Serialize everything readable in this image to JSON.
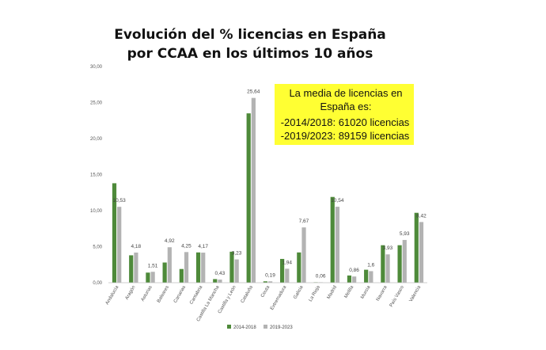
{
  "chart_data": {
    "type": "bar",
    "title_lines": [
      "Evolución del % licencias en España",
      "por CCAA en los últimos 10 años"
    ],
    "categories": [
      "Andalucía",
      "Aragón",
      "Asturias",
      "Baleares",
      "Canarias",
      "Cantabria",
      "Castilla La Mancha",
      "Castilla y León",
      "Cataluña",
      "Ceuta",
      "Extremadura",
      "Galicia",
      "La Rioja",
      "Madrid",
      "Melilla",
      "Murcia",
      "Navarra",
      "País Vasco",
      "Valencia"
    ],
    "series": [
      {
        "name": "2014-2018",
        "color": "#4e8a3a",
        "values": [
          13.8,
          3.8,
          1.4,
          2.8,
          1.9,
          4.2,
          0.5,
          4.3,
          23.5,
          0.19,
          3.3,
          4.2,
          0.06,
          11.9,
          1.0,
          1.8,
          5.2,
          5.2,
          9.7
        ]
      },
      {
        "name": "2019-2023",
        "color": "#b3b3b3",
        "values": [
          10.53,
          4.18,
          1.51,
          4.92,
          4.25,
          4.17,
          0.43,
          3.23,
          25.64,
          0.19,
          1.94,
          7.67,
          0.06,
          10.54,
          0.86,
          1.6,
          3.93,
          5.93,
          8.42
        ]
      }
    ],
    "data_labels": [
      "10,53",
      "4,18",
      "1,51",
      "4,92",
      "4,25",
      "4,17",
      "0,43",
      "3,23",
      "25,64",
      "0,19",
      "1,94",
      "7,67",
      "0,06",
      "10,54",
      "0,86",
      "1,6",
      "3,93",
      "5,93",
      "8,42"
    ],
    "y_ticks": [
      "0,00",
      "5,00",
      "10,00",
      "15,00",
      "20,00",
      "25,00",
      "30,00"
    ],
    "ylim": [
      0,
      30
    ],
    "grid": false,
    "legend_position": "bottom-center",
    "annotation": {
      "lines": [
        "La media de licencias en",
        "España es:",
        "-2014/2018: 61020 licencias",
        "-2019/2023: 89159 licencias"
      ],
      "background": "#ffff33"
    }
  }
}
